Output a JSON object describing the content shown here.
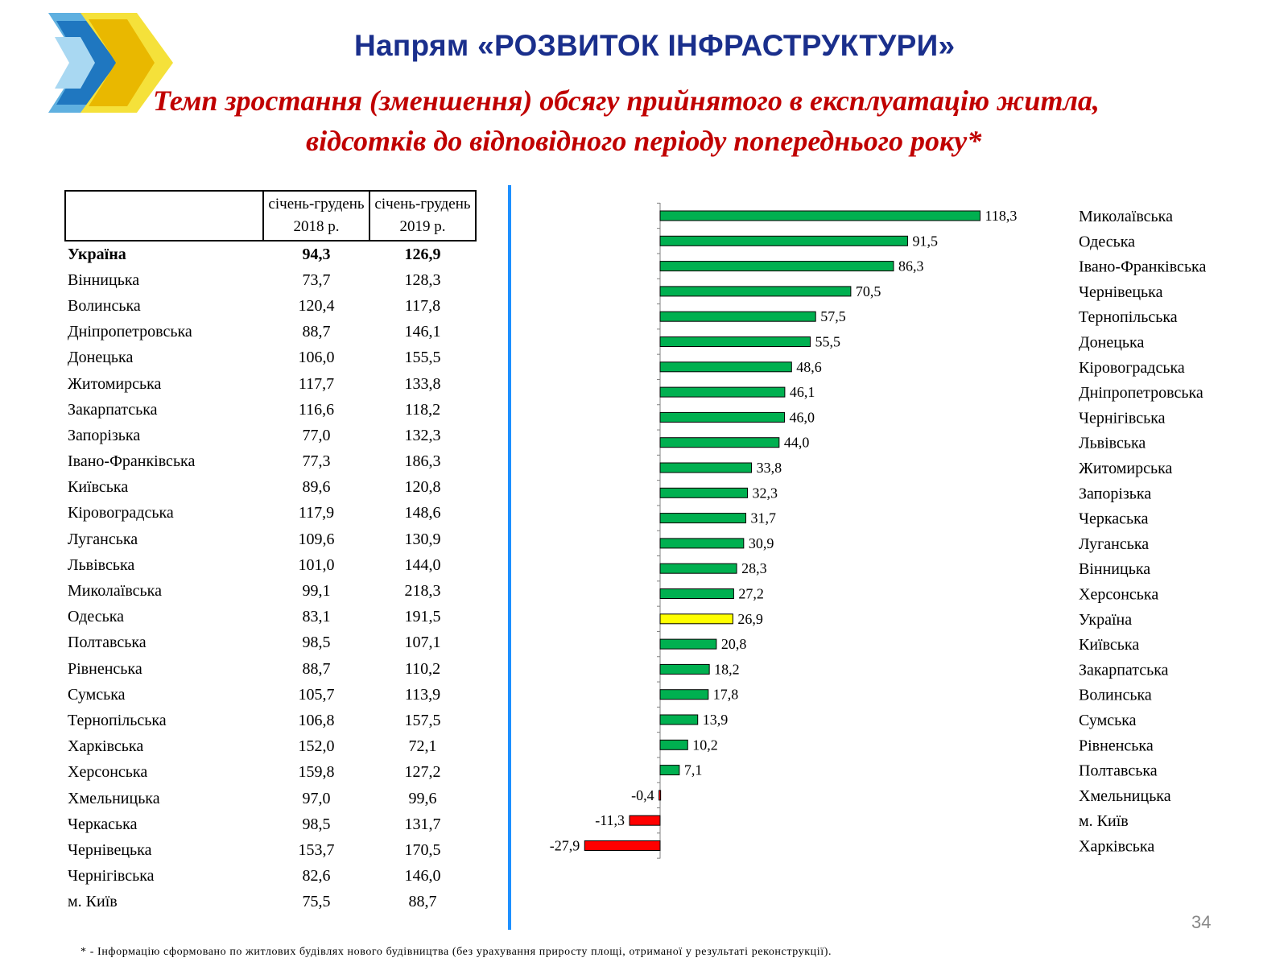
{
  "header": {
    "title": "Напрям «РОЗВИТОК ІНФРАСТРУКТУРИ»",
    "subtitle_line1": "Темп зростання (зменшення) обсягу прийнятого в експлуатацію житла,",
    "subtitle_line2": "відсотків до відповідного періоду попереднього року*"
  },
  "table": {
    "columns": [
      "",
      "січень-грудень 2018 р.",
      "січень-грудень 2019 р."
    ],
    "rows": [
      {
        "name": "Україна",
        "v2018": "94,3",
        "v2019": "126,9"
      },
      {
        "name": "Вінницька",
        "v2018": "73,7",
        "v2019": "128,3"
      },
      {
        "name": "Волинська",
        "v2018": "120,4",
        "v2019": "117,8"
      },
      {
        "name": "Дніпропетровська",
        "v2018": "88,7",
        "v2019": "146,1"
      },
      {
        "name": "Донецька",
        "v2018": "106,0",
        "v2019": "155,5"
      },
      {
        "name": "Житомирська",
        "v2018": "117,7",
        "v2019": "133,8"
      },
      {
        "name": "Закарпатська",
        "v2018": "116,6",
        "v2019": "118,2"
      },
      {
        "name": "Запорізька",
        "v2018": "77,0",
        "v2019": "132,3"
      },
      {
        "name": "Івано-Франківська",
        "v2018": "77,3",
        "v2019": "186,3"
      },
      {
        "name": "Київська",
        "v2018": "89,6",
        "v2019": "120,8"
      },
      {
        "name": "Кіровоградська",
        "v2018": "117,9",
        "v2019": "148,6"
      },
      {
        "name": "Луганська",
        "v2018": "109,6",
        "v2019": "130,9"
      },
      {
        "name": "Львівська",
        "v2018": "101,0",
        "v2019": "144,0"
      },
      {
        "name": "Миколаївська",
        "v2018": "99,1",
        "v2019": "218,3"
      },
      {
        "name": "Одеська",
        "v2018": "83,1",
        "v2019": "191,5"
      },
      {
        "name": "Полтавська",
        "v2018": "98,5",
        "v2019": "107,1"
      },
      {
        "name": "Рівненська",
        "v2018": "88,7",
        "v2019": "110,2"
      },
      {
        "name": "Сумська",
        "v2018": "105,7",
        "v2019": "113,9"
      },
      {
        "name": "Тернопільська",
        "v2018": "106,8",
        "v2019": "157,5"
      },
      {
        "name": "Харківська",
        "v2018": "152,0",
        "v2019": "72,1"
      },
      {
        "name": "Херсонська",
        "v2018": "159,8",
        "v2019": "127,2"
      },
      {
        "name": "Хмельницька",
        "v2018": "97,0",
        "v2019": "99,6"
      },
      {
        "name": "Черкаська",
        "v2018": "98,5",
        "v2019": "131,7"
      },
      {
        "name": "Чернівецька",
        "v2018": "153,7",
        "v2019": "170,5"
      },
      {
        "name": "Чернігівська",
        "v2018": "82,6",
        "v2019": "146,0"
      },
      {
        "name": "м. Київ",
        "v2018": "75,5",
        "v2019": "88,7"
      }
    ]
  },
  "chart_data": {
    "type": "bar",
    "orientation": "horizontal",
    "categories": [
      "Миколаївська",
      "Одеська",
      "Івано-Франківська",
      "Чернівецька",
      "Тернопільська",
      "Донецька",
      "Кіровоградська",
      "Дніпропетровська",
      "Чернігівська",
      "Львівська",
      "Житомирська",
      "Запорізька",
      "Черкаська",
      "Луганська",
      "Вінницька",
      "Херсонська",
      "Україна",
      "Київська",
      "Закарпатська",
      "Волинська",
      "Сумська",
      "Рівненська",
      "Полтавська",
      "Хмельницька",
      "м. Київ",
      "Харківська"
    ],
    "values": [
      118.3,
      91.5,
      86.3,
      70.5,
      57.5,
      55.5,
      48.6,
      46.1,
      46.0,
      44.0,
      33.8,
      32.3,
      31.7,
      30.9,
      28.3,
      27.2,
      26.9,
      20.8,
      18.2,
      17.8,
      13.9,
      10.2,
      7.1,
      -0.4,
      -11.3,
      -27.9
    ],
    "value_labels": [
      "118,3",
      "91,5",
      "86,3",
      "70,5",
      "57,5",
      "55,5",
      "48,6",
      "46,1",
      "46,0",
      "44,0",
      "33,8",
      "32,3",
      "31,7",
      "30,9",
      "28,3",
      "27,2",
      "26,9",
      "20,8",
      "18,2",
      "17,8",
      "13,9",
      "10,2",
      "7,1",
      "-0,4",
      "-11,3",
      "-27,9"
    ],
    "highlight": "Україна",
    "colors": {
      "positive": "#00b050",
      "negative": "#ff0000",
      "highlight": "#ffff00",
      "axis": "#808080"
    }
  },
  "page_number": "34",
  "footnote": "* - Інформацію сформовано по житлових будівлях нового будівництва (без урахування приросту площі, отриманої у результаті реконструкції)."
}
